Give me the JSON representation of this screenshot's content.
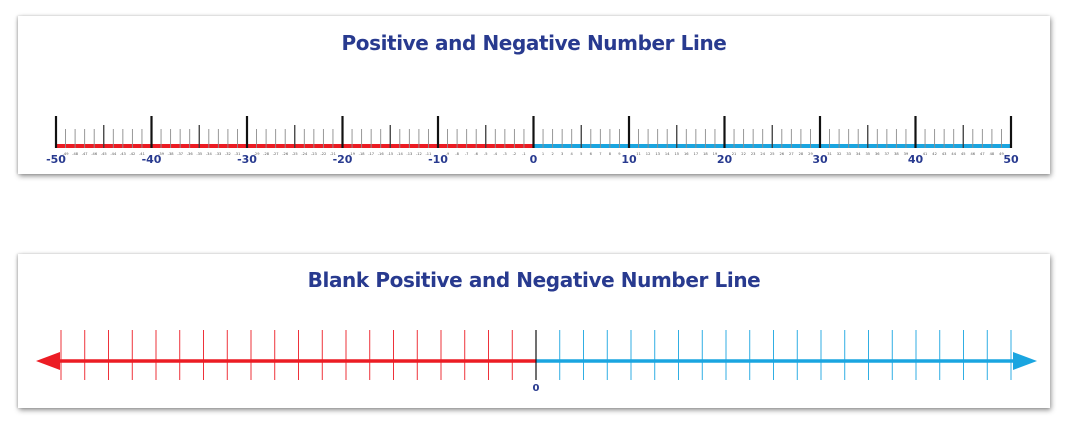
{
  "colors": {
    "negative": "#ec1c24",
    "positive": "#1aa5e0",
    "title": "#283a8f",
    "major_tick": "#111111",
    "minor_tick": "#8c8c8c",
    "label": "#283a8f"
  },
  "labeled_line": {
    "title": "Positive and Negative Number Line",
    "min": -50,
    "max": 50,
    "major_step": 10,
    "mid_step": 5,
    "minor_step": 1,
    "major_labels": [
      "-50",
      "-40",
      "-30",
      "-20",
      "-10",
      "0",
      "10",
      "20",
      "30",
      "40",
      "50"
    ],
    "minor_labels_note_free": true
  },
  "blank_line": {
    "title": "Blank Positive and Negative Number Line",
    "zero_label": "0",
    "ticks_each_side": 20,
    "arrows": "both"
  }
}
